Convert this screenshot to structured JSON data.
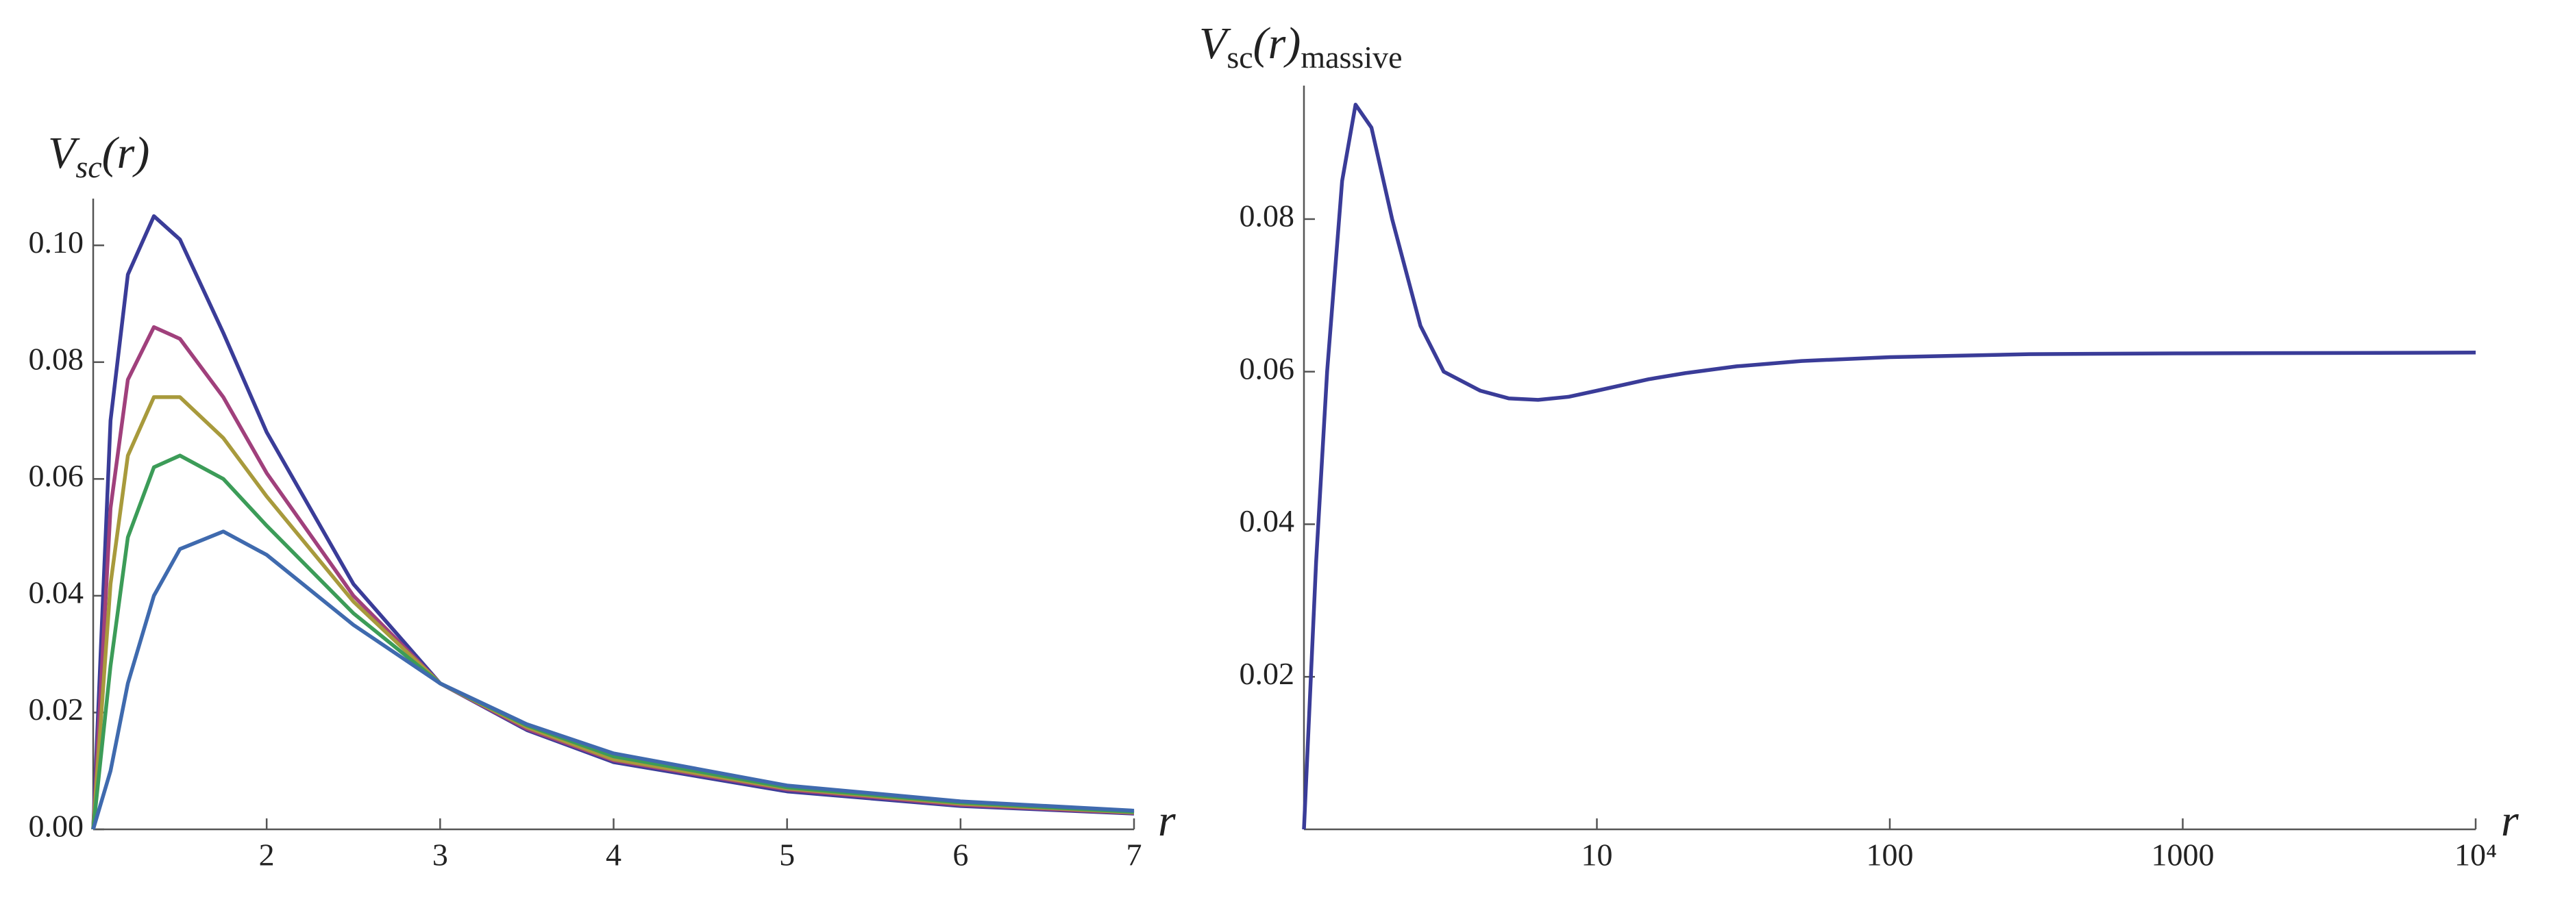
{
  "chart_data": [
    {
      "type": "line",
      "y_label": {
        "base": "V",
        "sub": "sc",
        "arg": "(r)"
      },
      "x_label": "r",
      "x": [
        1,
        1.1,
        1.2,
        1.35,
        1.5,
        1.75,
        2,
        2.5,
        3,
        3.5,
        4,
        5,
        6,
        7
      ],
      "series": [
        {
          "color": "#3a3c98",
          "values": [
            0,
            0.07,
            0.095,
            0.105,
            0.101,
            0.085,
            0.068,
            0.042,
            0.025,
            0.017,
            0.0115,
            0.0065,
            0.004,
            0.0027
          ]
        },
        {
          "color": "#a0407c",
          "values": [
            0,
            0.055,
            0.077,
            0.086,
            0.084,
            0.074,
            0.061,
            0.04,
            0.025,
            0.0172,
            0.0118,
            0.0068,
            0.0042,
            0.0028
          ]
        },
        {
          "color": "#a89a3c",
          "values": [
            0,
            0.042,
            0.064,
            0.074,
            0.074,
            0.067,
            0.057,
            0.039,
            0.025,
            0.0175,
            0.012,
            0.007,
            0.0044,
            0.0029
          ]
        },
        {
          "color": "#3c9c58",
          "values": [
            0,
            0.028,
            0.05,
            0.062,
            0.064,
            0.06,
            0.052,
            0.037,
            0.025,
            0.0178,
            0.0125,
            0.0072,
            0.0046,
            0.003
          ]
        },
        {
          "color": "#3f6aae",
          "values": [
            0,
            0.01,
            0.025,
            0.04,
            0.048,
            0.051,
            0.047,
            0.035,
            0.025,
            0.018,
            0.013,
            0.0075,
            0.0048,
            0.0032
          ]
        }
      ],
      "xlim": [
        1,
        7
      ],
      "xticks": [
        2,
        3,
        4,
        5,
        6,
        7
      ],
      "ylim": [
        0,
        0.108
      ],
      "yticks": [
        {
          "value": 0,
          "label": "0.00"
        },
        0.02,
        0.04,
        0.06,
        0.08,
        {
          "value": 0.1,
          "label": "0.10"
        }
      ]
    },
    {
      "type": "line",
      "log_x": true,
      "y_label": {
        "base": "V",
        "sub": "sc",
        "arg": "(r)",
        "sub2": "massive"
      },
      "x_label": "r",
      "x": [
        1,
        1.1,
        1.2,
        1.35,
        1.5,
        1.7,
        2,
        2.5,
        3,
        4,
        5,
        6.3,
        8,
        10,
        15,
        20,
        30,
        50,
        100,
        300,
        1000,
        10000
      ],
      "series": [
        {
          "color": "#3a3c98",
          "values": [
            0,
            0.035,
            0.06,
            0.085,
            0.095,
            0.092,
            0.08,
            0.066,
            0.06,
            0.0575,
            0.0565,
            0.0563,
            0.0567,
            0.0575,
            0.059,
            0.0598,
            0.0607,
            0.0614,
            0.0619,
            0.0623,
            0.0624,
            0.0625
          ]
        }
      ],
      "xlim": [
        1,
        10000
      ],
      "xticks": [
        10,
        100,
        1000,
        {
          "value": 10000,
          "label": "10⁴"
        }
      ],
      "ylim": [
        0,
        0.0975
      ],
      "yticks": [
        0.02,
        0.04,
        0.06,
        0.08
      ]
    }
  ]
}
